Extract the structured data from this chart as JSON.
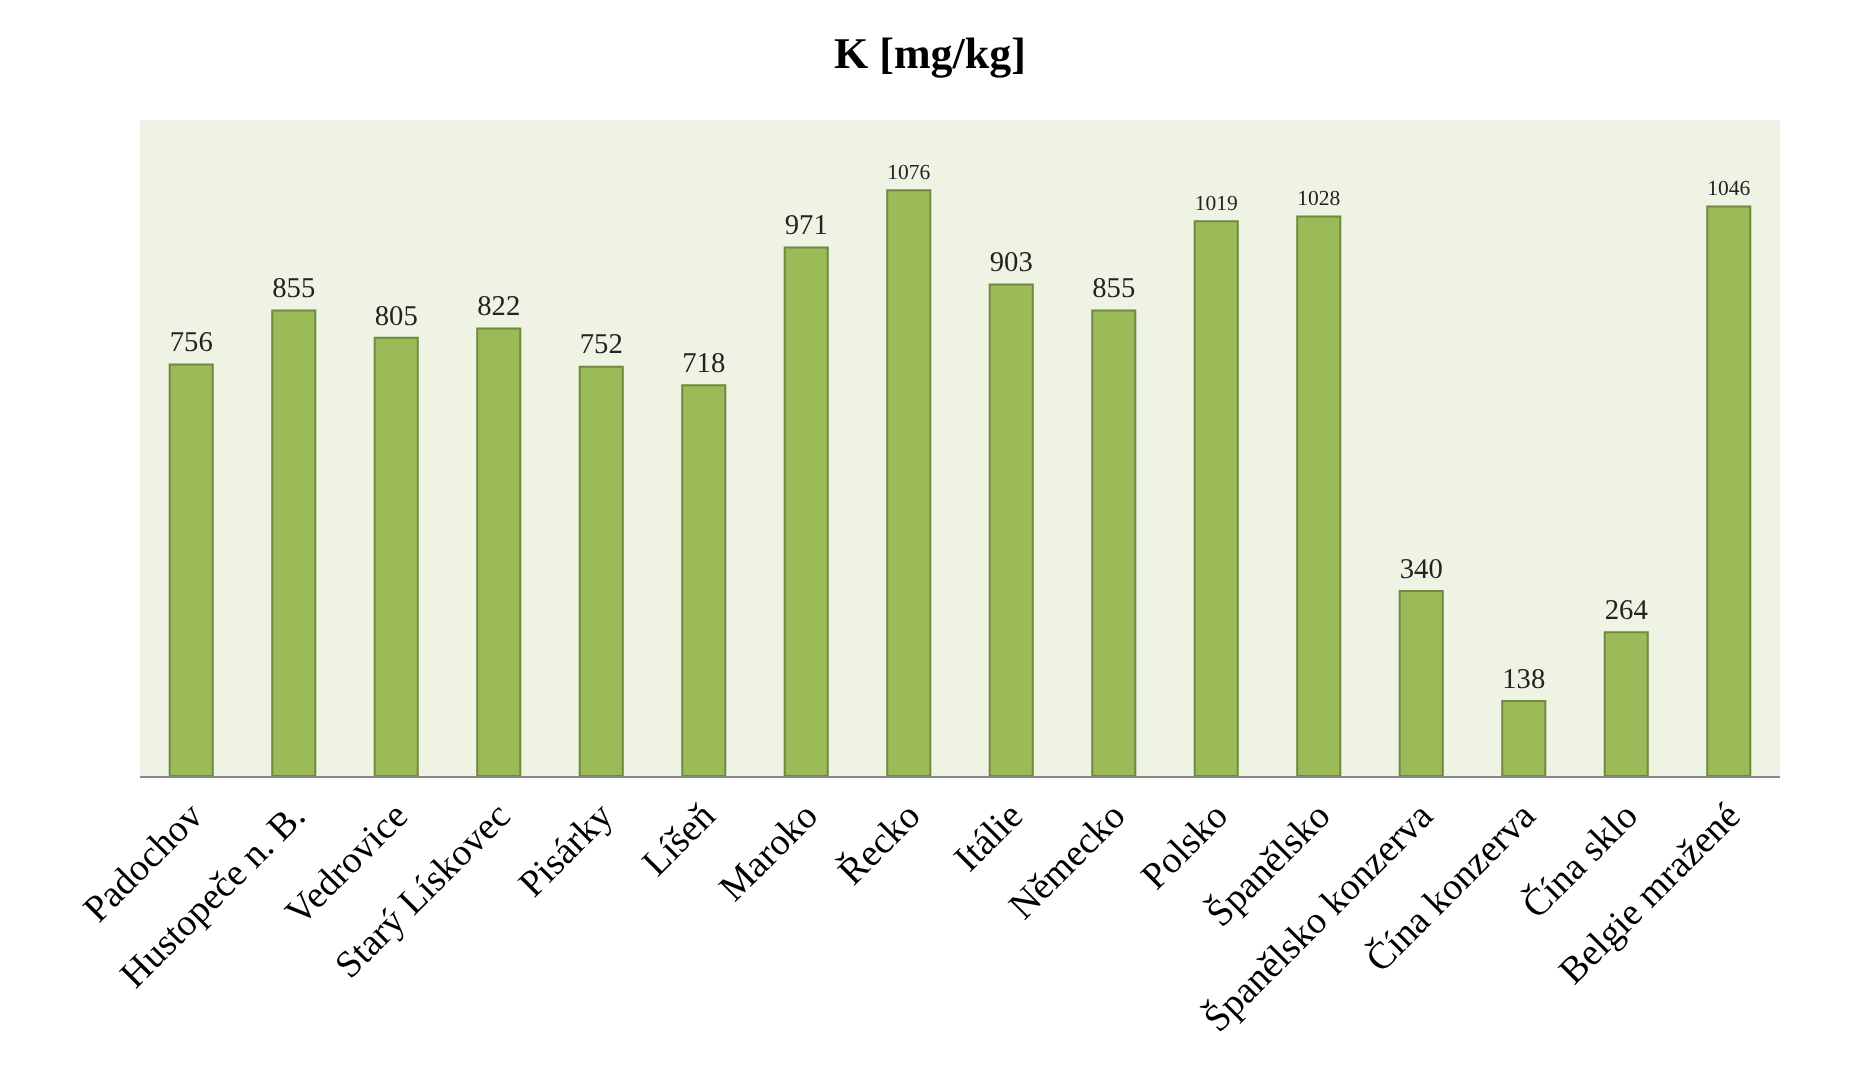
{
  "chart_data": {
    "type": "bar",
    "title": "K [mg/kg]",
    "categories": [
      "Padochov",
      "Hustopeče n. B.",
      "Vedrovice",
      "Starý Lískovec",
      "Pisárky",
      "Líšeň",
      "Maroko",
      "Řecko",
      "Itálie",
      "Německo",
      "Polsko",
      "Španělsko",
      "Španělsko konzerva",
      "Čína konzerva",
      "Čína sklo",
      "Belgie mražené"
    ],
    "values": [
      756,
      855,
      805,
      822,
      752,
      718,
      971,
      1076,
      903,
      855,
      1019,
      1028,
      340,
      138,
      264,
      1046
    ],
    "color": "#9bbb59",
    "data_labels": true,
    "grid": false,
    "legend": false
  }
}
